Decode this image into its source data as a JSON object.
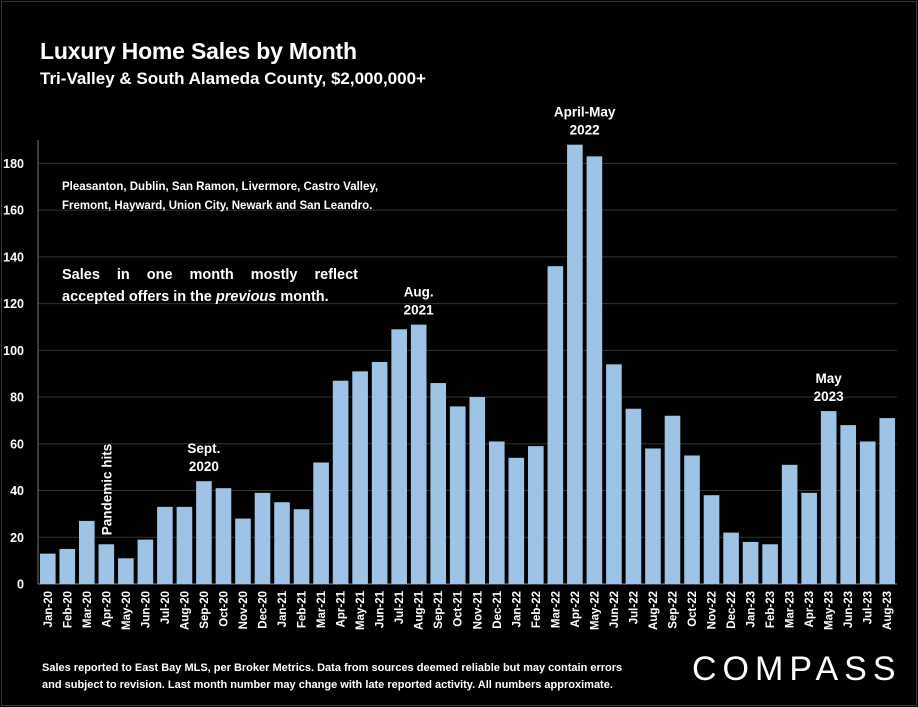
{
  "title": "Luxury Home Sales by Month",
  "subtitle": "Tri-Valley & South Alameda County, $2,000,000+",
  "note_cities": [
    "Pleasanton, Dublin, San Ramon, Livermore, Castro Valley,",
    "Fremont, Hayward, Union City, Newark and San Leandro."
  ],
  "note_offers": {
    "before": "Sales in one month mostly reflect accepted offers in the ",
    "italic": "previous",
    "after": " month."
  },
  "footer": [
    "Sales reported to East Bay MLS, per Broker Metrics. Data from sources deemed reliable but may contain errors",
    "and subject to revision. Last month number may change with late reported activity. All numbers approximate."
  ],
  "logo": "COMPASS",
  "colors": {
    "bar": "#9dc3e6",
    "background": "#000000",
    "grid": "#333333",
    "text": "#ffffff"
  },
  "chart_data": {
    "type": "bar",
    "title": "Luxury Home Sales by Month",
    "subtitle": "Tri-Valley & South Alameda County, $2,000,000+",
    "categories": [
      "Jan-20",
      "Feb-20",
      "Mar-20",
      "Apr-20",
      "May-20",
      "Jun-20",
      "Jul-20",
      "Aug-20",
      "Sep-20",
      "Oct-20",
      "Nov-20",
      "Dec-20",
      "Jan-21",
      "Feb-21",
      "Mar-21",
      "Apr-21",
      "May-21",
      "Jun-21",
      "Jul-21",
      "Aug-21",
      "Sep-21",
      "Oct-21",
      "Nov-21",
      "Dec-21",
      "Jan-22",
      "Feb-22",
      "Mar-22",
      "Apr-22",
      "May-22",
      "Jun-22",
      "Jul-22",
      "Aug-22",
      "Sep-22",
      "Oct-22",
      "Nov-22",
      "Dec-22",
      "Jan-23",
      "Feb-23",
      "Mar-23",
      "Apr-23",
      "May-23",
      "Jun-23",
      "Jul-23",
      "Aug-23"
    ],
    "values": [
      13,
      15,
      27,
      17,
      11,
      19,
      33,
      33,
      44,
      41,
      28,
      39,
      35,
      32,
      52,
      87,
      91,
      95,
      109,
      111,
      86,
      76,
      80,
      61,
      54,
      59,
      136,
      188,
      183,
      94,
      75,
      58,
      72,
      55,
      38,
      22,
      18,
      17,
      51,
      39,
      74,
      68,
      61,
      71
    ],
    "ylim": [
      0,
      190
    ],
    "yticks": [
      0,
      20,
      40,
      60,
      80,
      100,
      120,
      140,
      160,
      180
    ],
    "grid": true,
    "annotations": [
      {
        "lines": [
          "Pandemic hits"
        ],
        "category": "Apr-20",
        "rotated": true
      },
      {
        "lines": [
          "Sept.",
          "2020"
        ],
        "category": "Sep-20"
      },
      {
        "lines": [
          "Aug.",
          "2021"
        ],
        "category": "Aug-21"
      },
      {
        "lines": [
          "April-May",
          "2022"
        ],
        "category": "May-22",
        "between_prev": true
      },
      {
        "lines": [
          "May",
          "2023"
        ],
        "category": "May-23"
      }
    ]
  }
}
